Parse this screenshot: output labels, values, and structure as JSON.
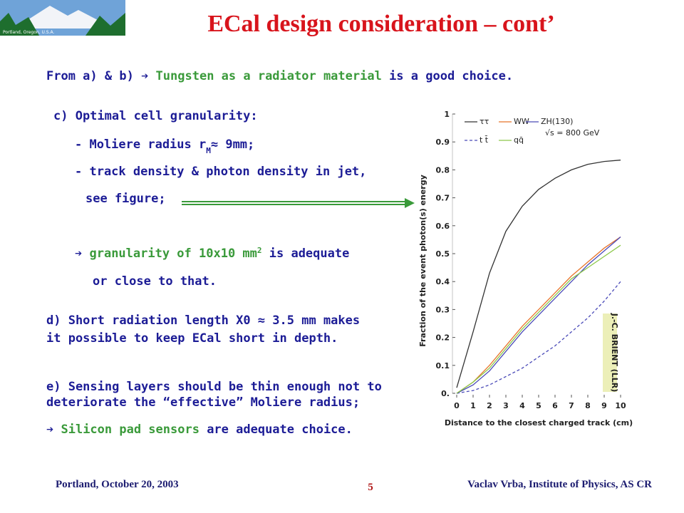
{
  "header": {
    "title": "ECal design consideration – cont’",
    "logo_caption": "Portland, Oregon, U.S.A."
  },
  "body": [
    [
      {
        "text": "From a) & b) "
      },
      {
        "text": "➔ "
      },
      {
        "text": "Tungsten as a radiator material",
        "emphasis": true
      },
      {
        "text": " is a good choice."
      }
    ],
    [
      {
        "text": "c) Optimal cell granularity:"
      }
    ],
    [
      {
        "text": "- Moliere radius r"
      },
      {
        "text": "M",
        "sub": true
      },
      {
        "text": "≈ 9mm;"
      }
    ],
    [
      {
        "text": "- track density & photon density in jet,"
      }
    ],
    [
      {
        "text": "see figure;"
      }
    ],
    [
      {
        "text": "➔ "
      },
      {
        "text": "granularity of 10x10 mm",
        "emphasis": true
      },
      {
        "text": "2",
        "sup": true,
        "emphasis": true
      },
      {
        "text": " is adequate"
      }
    ],
    [
      {
        "text": "or close to that."
      }
    ],
    [
      {
        "text": "d) Short radiation length X0 ≈ 3.5 mm makes"
      }
    ],
    [
      {
        "text": "it possible to keep ECal short in depth."
      }
    ],
    [
      {
        "text": "e) Sensing layers should be thin enough not to"
      }
    ],
    [
      {
        "text": "deteriorate the “effective” Moliere radius;"
      }
    ],
    [
      {
        "text": "➔ "
      },
      {
        "text": "Silicon pad sensors",
        "emphasis": true
      },
      {
        "text": " are adequate choice."
      }
    ]
  ],
  "figure": {
    "type": "line",
    "x_label": "Distance to the closest charged track (cm)",
    "y_label": "Fraction of the event photon(s) energy",
    "annotation": "√s = 800 GeV",
    "credit": "J.-C. BRIENT (LLR)",
    "x": [
      0,
      1,
      2,
      3,
      4,
      5,
      6,
      7,
      8,
      9,
      10
    ],
    "xlim": [
      0,
      10
    ],
    "xticks": [
      0,
      1,
      2,
      3,
      4,
      5,
      6,
      7,
      8,
      9,
      10
    ],
    "ylim": [
      0,
      1
    ],
    "yticks": [
      {
        "value": 0,
        "label": "0."
      },
      0.1,
      0.2,
      0.3,
      0.4,
      0.5,
      0.6,
      0.7,
      0.8,
      0.9,
      1
    ],
    "series": [
      {
        "name": "ττ",
        "color": "#333333",
        "values": [
          0.02,
          0.22,
          0.43,
          0.58,
          0.67,
          0.73,
          0.77,
          0.8,
          0.82,
          0.83,
          0.835
        ]
      },
      {
        "name": "WW",
        "color": "#e8742a",
        "values": [
          0,
          0.04,
          0.1,
          0.17,
          0.24,
          0.3,
          0.36,
          0.42,
          0.47,
          0.52,
          0.56
        ]
      },
      {
        "name": "ZH(130)",
        "color": "#4a4ab8",
        "values": [
          0,
          0.03,
          0.08,
          0.15,
          0.22,
          0.28,
          0.34,
          0.4,
          0.46,
          0.51,
          0.56
        ]
      },
      {
        "name": "t t̄",
        "color": "#4a4ab8",
        "dashed": true,
        "values": [
          0,
          0.01,
          0.03,
          0.06,
          0.09,
          0.13,
          0.17,
          0.22,
          0.27,
          0.33,
          0.4
        ]
      },
      {
        "name": "qq̄",
        "color": "#8cc84a",
        "values": [
          0,
          0.04,
          0.09,
          0.16,
          0.23,
          0.29,
          0.35,
          0.41,
          0.45,
          0.49,
          0.53
        ]
      }
    ]
  },
  "footer": {
    "left": "Portland, October 20, 2003",
    "page": "5",
    "right": "Vaclav Vrba, Institute of Physics, AS CR"
  }
}
